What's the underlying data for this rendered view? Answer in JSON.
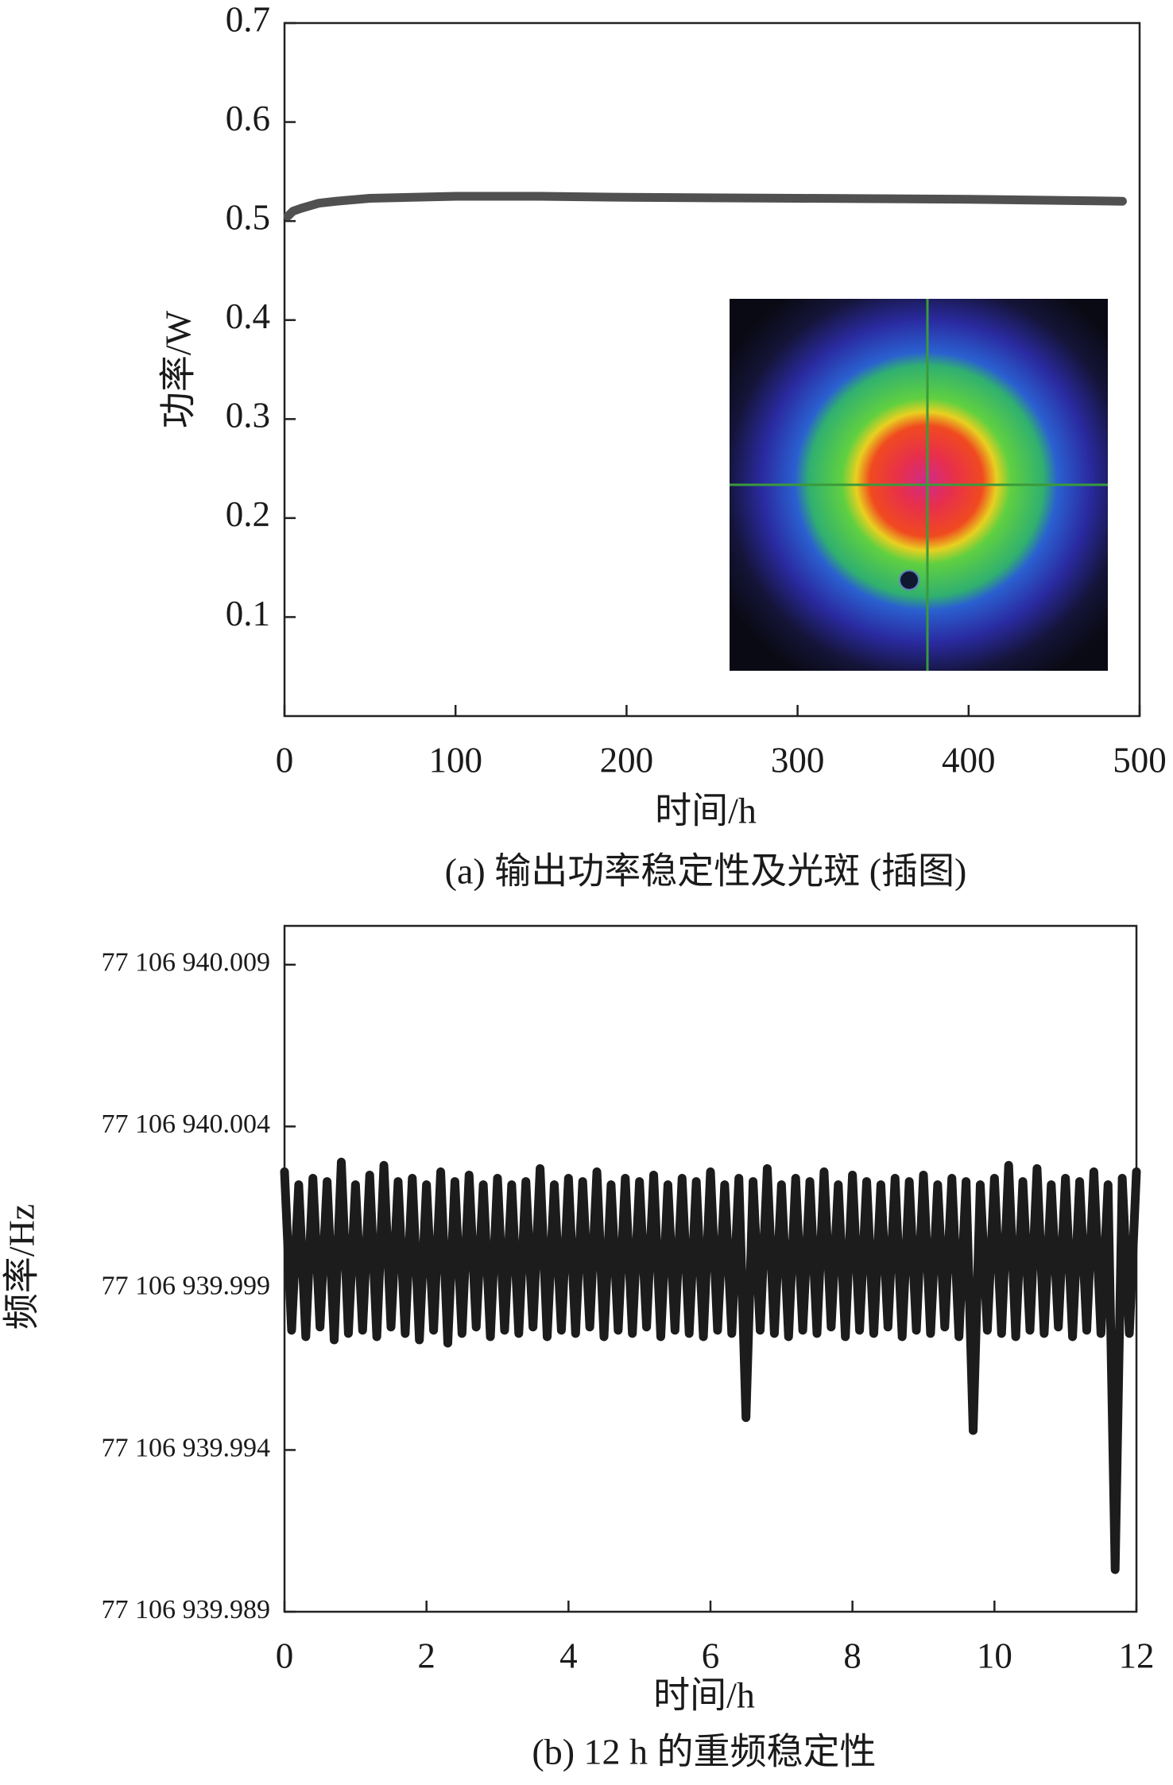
{
  "chart_data": [
    {
      "type": "line",
      "caption": "(a) 输出功率稳定性及光斑 (插图)",
      "x_label": "时间/h",
      "y_label": "功率/W",
      "xlim": [
        0,
        500
      ],
      "ylim": [
        0,
        0.7
      ],
      "xticks": [
        0,
        100,
        200,
        300,
        400,
        500
      ],
      "yticks": [
        0.1,
        0.2,
        0.3,
        0.4,
        0.5,
        0.6,
        0.7
      ],
      "x": [
        2,
        5,
        10,
        20,
        30,
        50,
        100,
        150,
        200,
        300,
        400,
        490
      ],
      "values": [
        0.505,
        0.51,
        0.513,
        0.518,
        0.52,
        0.523,
        0.525,
        0.525,
        0.524,
        0.523,
        0.522,
        0.52
      ],
      "color": "#505050"
    },
    {
      "type": "line",
      "caption": "(b) 12 h 的重频稳定性",
      "x_label": "时间/h",
      "y_label": "频率/Hz",
      "xlim": [
        0,
        12
      ],
      "ylim": [
        77106939.989,
        77106940.0102
      ],
      "xticks": [
        0,
        2,
        4,
        6,
        8,
        10,
        12
      ],
      "yticks": [
        {
          "value": 77106939.989,
          "label": "77 106 939.989"
        },
        {
          "value": 77106939.994,
          "label": "77 106 939.994"
        },
        {
          "value": 77106939.999,
          "label": "77 106 939.999"
        },
        {
          "value": 77106940.004,
          "label": "77 106 940.004"
        },
        {
          "value": 77106940.009,
          "label": "77 106 940.009"
        }
      ],
      "x": [
        0,
        0.1,
        0.2,
        0.3,
        0.4,
        0.5,
        0.6,
        0.7,
        0.8,
        0.9,
        1,
        1.1,
        1.2,
        1.3,
        1.4,
        1.5,
        1.6,
        1.7,
        1.8,
        1.9,
        2,
        2.1,
        2.2,
        2.3,
        2.4,
        2.5,
        2.6,
        2.7,
        2.8,
        2.9,
        3,
        3.1,
        3.2,
        3.3,
        3.4,
        3.5,
        3.6,
        3.7,
        3.8,
        3.9,
        4,
        4.1,
        4.2,
        4.3,
        4.4,
        4.5,
        4.6,
        4.7,
        4.8,
        4.9,
        5,
        5.1,
        5.2,
        5.3,
        5.4,
        5.5,
        5.6,
        5.7,
        5.8,
        5.9,
        6,
        6.1,
        6.2,
        6.3,
        6.4,
        6.5,
        6.6,
        6.7,
        6.8,
        6.9,
        7,
        7.1,
        7.2,
        7.3,
        7.4,
        7.5,
        7.6,
        7.7,
        7.8,
        7.9,
        8,
        8.1,
        8.2,
        8.3,
        8.4,
        8.5,
        8.6,
        8.7,
        8.8,
        8.9,
        9,
        9.1,
        9.2,
        9.3,
        9.4,
        9.5,
        9.6,
        9.7,
        9.8,
        9.9,
        10,
        10.1,
        10.2,
        10.3,
        10.4,
        10.5,
        10.6,
        10.7,
        10.8,
        10.9,
        11,
        11.1,
        11.2,
        11.3,
        11.4,
        11.5,
        11.6,
        11.7,
        11.8,
        11.9,
        12
      ],
      "values": [
        77106940.0026,
        77106939.9977,
        77106940.0022,
        77106939.9975,
        77106940.0024,
        77106939.9978,
        77106940.0023,
        77106939.9974,
        77106940.0029,
        77106939.9976,
        77106940.0022,
        77106939.9977,
        77106940.0025,
        77106939.9975,
        77106940.0028,
        77106939.9978,
        77106940.0023,
        77106939.9976,
        77106940.0024,
        77106939.9974,
        77106940.0022,
        77106939.9977,
        77106940.0026,
        77106939.9973,
        77106940.0023,
        77106939.9976,
        77106940.0025,
        77106939.9978,
        77106940.0022,
        77106939.9975,
        77106940.0024,
        77106939.9977,
        77106940.0022,
        77106939.9976,
        77106940.0023,
        77106939.9978,
        77106940.0027,
        77106939.9975,
        77106940.0022,
        77106939.9977,
        77106940.0024,
        77106939.9976,
        77106940.0023,
        77106939.9978,
        77106940.0026,
        77106939.9975,
        77106940.0022,
        77106939.9977,
        77106940.0024,
        77106939.9976,
        77106940.0023,
        77106939.9978,
        77106940.0025,
        77106939.9975,
        77106940.0022,
        77106939.9977,
        77106940.0024,
        77106939.9976,
        77106940.0023,
        77106939.9975,
        77106940.0026,
        77106939.9977,
        77106940.0022,
        77106939.9976,
        77106940.0024,
        77106939.995,
        77106940.0023,
        77106939.9977,
        77106940.0027,
        77106939.9976,
        77106940.0022,
        77106939.9975,
        77106940.0024,
        77106939.9977,
        77106940.0023,
        77106939.9976,
        77106940.0026,
        77106939.9978,
        77106940.0022,
        77106939.9975,
        77106940.0025,
        77106939.9977,
        77106940.0023,
        77106939.9976,
        77106940.0022,
        77106939.9978,
        77106940.0024,
        77106939.9975,
        77106940.0023,
        77106939.9977,
        77106940.0025,
        77106939.9976,
        77106940.0022,
        77106939.9978,
        77106940.0024,
        77106939.9975,
        77106940.0023,
        77106939.9946,
        77106940.0022,
        77106939.9977,
        77106940.0024,
        77106939.9976,
        77106940.0028,
        77106939.9975,
        77106940.0023,
        77106939.9977,
        77106940.0027,
        77106939.9976,
        77106940.0022,
        77106939.9978,
        77106940.0024,
        77106939.9975,
        77106940.0023,
        77106939.9977,
        77106940.0026,
        77106939.9976,
        77106940.0022,
        77106939.9903,
        77106940.0024,
        77106939.9976,
        77106940.0026
      ],
      "color": "#1c1c1c"
    }
  ]
}
